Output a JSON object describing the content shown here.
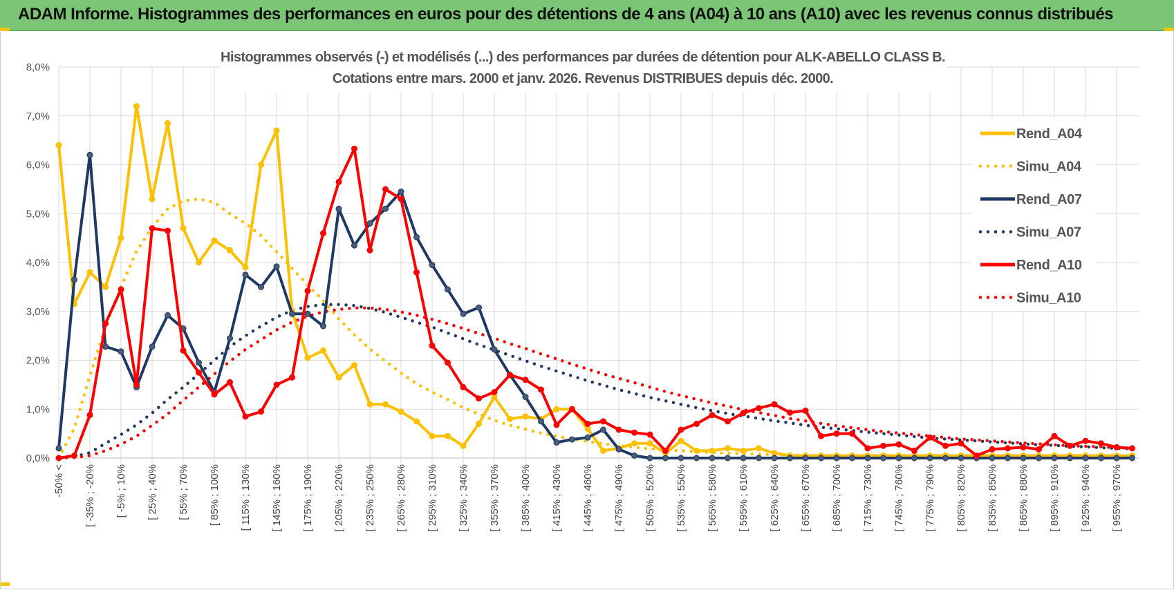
{
  "banner": {
    "title": "ADAM Informe. Histogrammes des performances en euros pour des détentions de 4 ans (A04) à 10 ans (A10) avec les revenus connus distribués"
  },
  "chart_data": {
    "type": "line",
    "title_lines": [
      "Histogrammes observés (-) et modélisés (...) des performances par durées de détention pour ALK-ABELLO  CLASS B.",
      "Cotations entre mars. 2000 et janv. 2026.  Revenus DISTRIBUES depuis déc. 2000."
    ],
    "ylim": [
      0,
      8
    ],
    "yticks": [
      "0,0%",
      "1,0%",
      "2,0%",
      "3,0%",
      "4,0%",
      "5,0%",
      "6,0%",
      "7,0%",
      "8,0%"
    ],
    "x_tick_labels": [
      "-50% <",
      "[ -35% ; -20%",
      "[ -5% ; 10%",
      "[ 25% ; 40%",
      "[ 55% ; 70%",
      "[ 85% ; 100%",
      "[ 115% ; 130%",
      "[ 145% ; 160%",
      "[ 175% ; 190%",
      "[ 205% ; 220%",
      "[ 235% ; 250%",
      "[ 265% ; 280%",
      "[ 295% ; 310%",
      "[ 325% ; 340%",
      "[ 355% ; 370%",
      "[ 385% ; 400%",
      "[ 415% ; 430%",
      "[ 445% ; 460%",
      "[ 475% ; 490%",
      "[ 505% ; 520%",
      "[ 535% ; 550%",
      "[ 565% ; 580%",
      "[ 595% ; 610%",
      "[ 625% ; 640%",
      "[ 655% ; 670%",
      "[ 685% ; 700%",
      "[ 715% ; 730%",
      "[ 745% ; 760%",
      "[ 775% ; 790%",
      "[ 805% ; 820%",
      "[ 835% ; 850%",
      "[ 865% ; 880%",
      "[ 895% ; 910%",
      "[ 925% ; 940%",
      "[ 955% ; 970%"
    ],
    "n_categories": 70,
    "series": [
      {
        "name": "Rend_A04",
        "style": "solid",
        "color": "#ffc000",
        "values": [
          6.4,
          3.15,
          3.8,
          3.5,
          4.5,
          7.2,
          5.3,
          6.85,
          4.7,
          4.0,
          4.45,
          4.25,
          3.9,
          6.0,
          6.7,
          3.0,
          2.05,
          2.2,
          1.65,
          1.9,
          1.1,
          1.1,
          0.95,
          0.75,
          0.45,
          0.45,
          0.25,
          0.7,
          1.25,
          0.8,
          0.85,
          0.8,
          1.0,
          1.0,
          0.6,
          0.15,
          0.2,
          0.3,
          0.3,
          0.1,
          0.35,
          0.15,
          0.15,
          0.2,
          0.15,
          0.2,
          0.1,
          0.05,
          0.05,
          0.05,
          0.05,
          0.05,
          0.05,
          0.05,
          0.05,
          0.05,
          0.05,
          0.05,
          0.05,
          0.05,
          0.05,
          0.05,
          0.05,
          0.05,
          0.05,
          0.05,
          0.05,
          0.05,
          0.05,
          0.05
        ]
      },
      {
        "name": "Simu_A04",
        "style": "dotted",
        "color": "#ffc000",
        "values": [
          0.0,
          0.61,
          1.68,
          2.69,
          3.5,
          4.23,
          4.72,
          5.1,
          5.26,
          5.3,
          5.23,
          5.0,
          4.8,
          4.55,
          4.22,
          3.88,
          3.54,
          3.22,
          2.85,
          2.52,
          2.23,
          1.98,
          1.74,
          1.52,
          1.35,
          1.2,
          1.03,
          0.9,
          0.77,
          0.67,
          0.59,
          0.51,
          0.45,
          0.39,
          0.34,
          0.29,
          0.25,
          0.22,
          0.19,
          0.17,
          0.15,
          0.13,
          0.11,
          0.1,
          0.09,
          0.08,
          0.07,
          0.06,
          0.05,
          0.05,
          0.04,
          0.04,
          0.03,
          0.03,
          0.03,
          0.02,
          0.02,
          0.02,
          0.02,
          0.02,
          0.01,
          0.01,
          0.01,
          0.01,
          0.01,
          0.01,
          0.01,
          0.01,
          0.01,
          0.01
        ]
      },
      {
        "name": "Rend_A07",
        "style": "solid",
        "color": "#1f3864",
        "values": [
          0.2,
          3.65,
          6.2,
          2.28,
          2.18,
          1.45,
          2.28,
          2.92,
          2.65,
          1.95,
          1.35,
          2.45,
          3.75,
          3.5,
          3.92,
          2.95,
          2.95,
          2.7,
          5.1,
          4.35,
          4.8,
          5.1,
          5.45,
          4.52,
          3.95,
          3.45,
          2.95,
          3.08,
          2.22,
          1.7,
          1.25,
          0.75,
          0.32,
          0.38,
          0.42,
          0.58,
          0.18,
          0.05,
          0.0,
          0.0,
          0.0,
          0.0,
          0.0,
          0.0,
          0.0,
          0.0,
          0.0,
          0.0,
          0.0,
          0.0,
          0.0,
          0.0,
          0.0,
          0.0,
          0.0,
          0.0,
          0.0,
          0.0,
          0.0,
          0.0,
          0.0,
          0.0,
          0.0,
          0.0,
          0.0,
          0.0,
          0.0,
          0.0,
          0.0,
          0.0
        ]
      },
      {
        "name": "Simu_A07",
        "style": "dotted",
        "color": "#1f3864",
        "values": [
          0.0,
          0.03,
          0.11,
          0.3,
          0.48,
          0.68,
          0.92,
          1.2,
          1.45,
          1.72,
          2.0,
          2.28,
          2.5,
          2.7,
          2.88,
          3.02,
          3.1,
          3.14,
          3.14,
          3.12,
          3.06,
          2.98,
          2.88,
          2.78,
          2.68,
          2.56,
          2.44,
          2.32,
          2.21,
          2.1,
          1.99,
          1.88,
          1.78,
          1.68,
          1.58,
          1.49,
          1.4,
          1.32,
          1.24,
          1.17,
          1.1,
          1.03,
          0.97,
          0.91,
          0.86,
          0.81,
          0.76,
          0.72,
          0.67,
          0.63,
          0.6,
          0.56,
          0.53,
          0.5,
          0.47,
          0.44,
          0.41,
          0.39,
          0.37,
          0.35,
          0.33,
          0.31,
          0.29,
          0.27,
          0.26,
          0.24,
          0.23,
          0.21,
          0.2,
          0.19
        ]
      },
      {
        "name": "Rend_A10",
        "style": "solid",
        "color": "#ff0000",
        "values": [
          0.0,
          0.05,
          0.88,
          2.75,
          3.45,
          1.5,
          4.7,
          4.65,
          2.2,
          1.75,
          1.3,
          1.55,
          0.85,
          0.95,
          1.5,
          1.65,
          3.42,
          4.6,
          5.65,
          6.33,
          4.25,
          5.5,
          5.3,
          3.8,
          2.3,
          1.95,
          1.45,
          1.22,
          1.35,
          1.7,
          1.6,
          1.4,
          0.68,
          1.0,
          0.7,
          0.75,
          0.58,
          0.52,
          0.48,
          0.15,
          0.58,
          0.7,
          0.88,
          0.75,
          0.92,
          1.02,
          1.1,
          0.93,
          0.97,
          0.45,
          0.5,
          0.5,
          0.2,
          0.25,
          0.28,
          0.15,
          0.42,
          0.25,
          0.3,
          0.05,
          0.18,
          0.2,
          0.22,
          0.18,
          0.45,
          0.25,
          0.35,
          0.3,
          0.22,
          0.2
        ]
      },
      {
        "name": "Simu_A10",
        "style": "dotted",
        "color": "#ff0000",
        "values": [
          0.0,
          0.01,
          0.05,
          0.15,
          0.28,
          0.45,
          0.67,
          0.9,
          1.18,
          1.45,
          1.72,
          1.98,
          2.22,
          2.42,
          2.62,
          2.78,
          2.9,
          2.99,
          3.04,
          3.07,
          3.07,
          3.04,
          2.99,
          2.92,
          2.84,
          2.75,
          2.65,
          2.55,
          2.45,
          2.34,
          2.24,
          2.13,
          2.03,
          1.92,
          1.82,
          1.72,
          1.63,
          1.54,
          1.45,
          1.36,
          1.28,
          1.2,
          1.13,
          1.06,
          0.99,
          0.93,
          0.87,
          0.81,
          0.76,
          0.71,
          0.66,
          0.62,
          0.58,
          0.54,
          0.51,
          0.48,
          0.45,
          0.42,
          0.39,
          0.37,
          0.35,
          0.33,
          0.31,
          0.29,
          0.27,
          0.25,
          0.24,
          0.23,
          0.21,
          0.2
        ]
      }
    ],
    "legend_position": "right",
    "grid": true
  }
}
